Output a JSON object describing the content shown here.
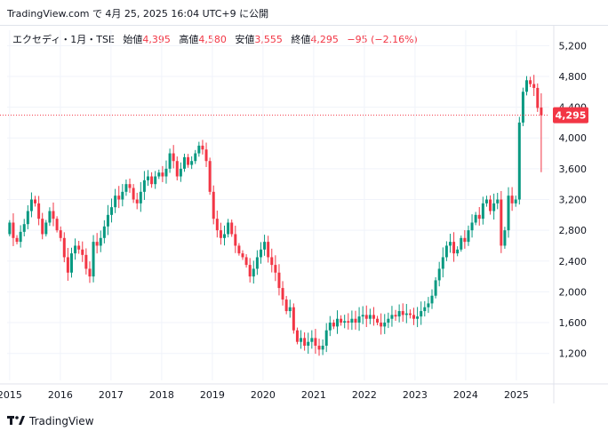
{
  "header": {
    "source_line": "TradingView.com で 4月 25, 2025 16:04 UTC+9 に公開"
  },
  "legend": {
    "symbol": "エクセディ・1月・TSE",
    "open_label": "始値",
    "open_value": "4,395",
    "high_label": "高値",
    "high_value": "4,580",
    "low_label": "安値",
    "low_value": "3,555",
    "close_label": "終値",
    "close_value": "4,295",
    "change": "−95 (−2.16%)"
  },
  "price_tag": "4,295",
  "brand": {
    "name": "TradingView",
    "icon": "tradingview-logo-icon"
  },
  "colors": {
    "up": "#089981",
    "down": "#f23645",
    "grid": "#f0f3fa",
    "text": "#131722"
  },
  "chart_data": {
    "type": "candlestick",
    "interval": "1M",
    "currency_unit": "JPY",
    "y_ticks": [
      "1,200",
      "1,600",
      "2,000",
      "2,400",
      "2,800",
      "3,200",
      "3,600",
      "4,000",
      "4,400",
      "4,800",
      "5,200"
    ],
    "y_tick_values": [
      1200,
      1600,
      2000,
      2400,
      2800,
      3200,
      3600,
      4000,
      4400,
      4800,
      5200
    ],
    "y_range": [
      850,
      5400
    ],
    "x_ticks": [
      "2015",
      "2016",
      "2017",
      "2018",
      "2019",
      "2020",
      "2021",
      "2022",
      "2023",
      "2024",
      "2025"
    ],
    "x_range_years": [
      2014.95,
      2025.65
    ],
    "last_price": 4295,
    "close_series": [
      2900,
      2700,
      2650,
      2780,
      2880,
      3050,
      3200,
      3150,
      2950,
      2750,
      2900,
      3050,
      2950,
      2800,
      2700,
      2450,
      2250,
      2500,
      2600,
      2550,
      2480,
      2300,
      2200,
      2650,
      2600,
      2700,
      2850,
      3000,
      3100,
      3250,
      3200,
      3300,
      3400,
      3350,
      3200,
      3150,
      3300,
      3450,
      3500,
      3400,
      3500,
      3550,
      3500,
      3600,
      3800,
      3700,
      3500,
      3600,
      3750,
      3650,
      3700,
      3800,
      3900,
      3850,
      3700,
      3300,
      2950,
      2800,
      2700,
      2750,
      2900,
      2750,
      2600,
      2500,
      2450,
      2350,
      2200,
      2300,
      2450,
      2550,
      2650,
      2450,
      2350,
      2250,
      2050,
      1900,
      1750,
      1800,
      1500,
      1350,
      1400,
      1300,
      1350,
      1400,
      1300,
      1250,
      1300,
      1500,
      1600,
      1550,
      1650,
      1600,
      1620,
      1600,
      1650,
      1600,
      1680,
      1700,
      1650,
      1700,
      1650,
      1600,
      1550,
      1600,
      1650,
      1700,
      1680,
      1750,
      1700,
      1720,
      1700,
      1650,
      1680,
      1750,
      1800,
      1850,
      1950,
      2150,
      2300,
      2450,
      2600,
      2650,
      2500,
      2550,
      2700,
      2650,
      2800,
      2900,
      3000,
      2950,
      3150,
      3200,
      3050,
      3150,
      3200,
      2600,
      2800,
      3250,
      3150,
      3200,
      4200,
      4600,
      4750,
      4700,
      4650,
      4390,
      4295
    ],
    "open_series": [
      2750,
      2900,
      2700,
      2650,
      2780,
      2880,
      3050,
      3200,
      3150,
      2950,
      2750,
      2900,
      3050,
      2950,
      2800,
      2700,
      2450,
      2250,
      2500,
      2600,
      2550,
      2480,
      2300,
      2200,
      2650,
      2600,
      2700,
      2850,
      3000,
      3100,
      3250,
      3200,
      3300,
      3400,
      3350,
      3200,
      3150,
      3300,
      3450,
      3500,
      3400,
      3500,
      3550,
      3500,
      3600,
      3800,
      3700,
      3500,
      3600,
      3750,
      3650,
      3700,
      3800,
      3900,
      3850,
      3700,
      3300,
      2950,
      2800,
      2700,
      2750,
      2900,
      2750,
      2600,
      2500,
      2450,
      2350,
      2200,
      2300,
      2450,
      2550,
      2650,
      2450,
      2350,
      2250,
      2050,
      1900,
      1750,
      1800,
      1500,
      1350,
      1400,
      1300,
      1350,
      1400,
      1300,
      1250,
      1300,
      1500,
      1600,
      1550,
      1650,
      1600,
      1620,
      1600,
      1650,
      1600,
      1680,
      1700,
      1650,
      1700,
      1650,
      1600,
      1550,
      1600,
      1650,
      1700,
      1680,
      1750,
      1700,
      1720,
      1700,
      1650,
      1680,
      1750,
      1800,
      1850,
      1950,
      2150,
      2300,
      2450,
      2600,
      2650,
      2500,
      2550,
      2700,
      2650,
      2800,
      2900,
      3000,
      2950,
      3150,
      3200,
      3050,
      3150,
      3200,
      2600,
      2800,
      3250,
      3150,
      3200,
      4200,
      4600,
      4750,
      4700,
      4650,
      4395
    ]
  }
}
